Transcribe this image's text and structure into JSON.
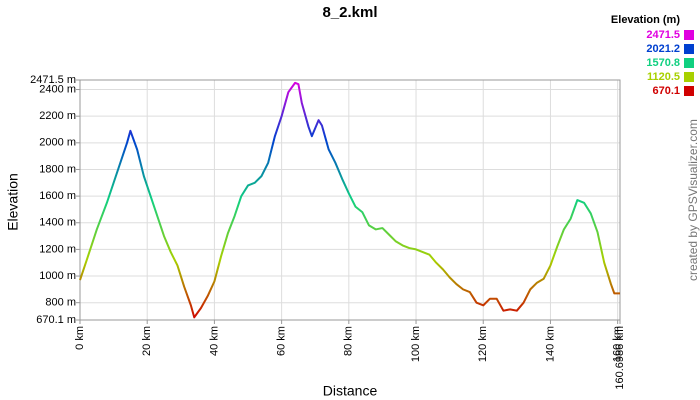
{
  "chart_data": {
    "type": "line",
    "title": "8_2.kml",
    "x_label": "Distance",
    "y_label": "Elevation",
    "credit": "created by GPSVisualizer.com",
    "x": [
      0,
      2,
      5,
      8,
      10,
      12,
      14,
      15,
      17,
      19,
      21,
      23,
      25,
      27,
      29,
      31,
      33,
      34,
      36,
      38,
      40,
      42,
      44,
      46,
      48,
      50,
      52,
      54,
      56,
      58,
      60,
      62,
      64,
      65,
      66,
      68,
      69,
      71,
      72,
      74,
      76,
      78,
      80,
      82,
      84,
      86,
      88,
      90,
      92,
      94,
      96,
      98,
      100,
      102,
      104,
      106,
      108,
      110,
      112,
      114,
      116,
      118,
      120,
      122,
      124,
      126,
      128,
      130,
      132,
      134,
      136,
      138,
      140,
      142,
      144,
      146,
      148,
      150,
      152,
      154,
      156,
      158,
      159,
      160.6986
    ],
    "series": [
      {
        "values": [
          970,
          1120,
          1350,
          1550,
          1700,
          1850,
          2000,
          2090,
          1950,
          1750,
          1600,
          1450,
          1300,
          1180,
          1080,
          920,
          780,
          690,
          760,
          850,
          960,
          1150,
          1320,
          1450,
          1600,
          1680,
          1700,
          1750,
          1850,
          2050,
          2200,
          2380,
          2450,
          2440,
          2300,
          2120,
          2050,
          2170,
          2130,
          1950,
          1850,
          1730,
          1620,
          1520,
          1480,
          1380,
          1350,
          1360,
          1310,
          1260,
          1230,
          1210,
          1200,
          1180,
          1160,
          1100,
          1050,
          990,
          940,
          900,
          880,
          800,
          780,
          830,
          830,
          740,
          750,
          740,
          800,
          900,
          950,
          980,
          1080,
          1220,
          1350,
          1430,
          1570,
          1550,
          1470,
          1330,
          1100,
          940,
          870,
          870
        ]
      }
    ],
    "xlim": [
      0,
      160.6986
    ],
    "xticks": [
      {
        "value": 0,
        "label": "0 km"
      },
      {
        "value": 20,
        "label": "20 km"
      },
      {
        "value": 40,
        "label": "40 km"
      },
      {
        "value": 60,
        "label": "60 km"
      },
      {
        "value": 80,
        "label": "80 km"
      },
      {
        "value": 100,
        "label": "100 km"
      },
      {
        "value": 120,
        "label": "120 km"
      },
      {
        "value": 140,
        "label": "140 km"
      },
      {
        "value": 160,
        "label": "160 km"
      },
      {
        "value": 160.6986,
        "label": "160.6986 km"
      }
    ],
    "ylim": [
      670.1,
      2471.5
    ],
    "yticks": [
      {
        "value": 670.1,
        "label": "670.1 m"
      },
      {
        "value": 800,
        "label": "800 m"
      },
      {
        "value": 1000,
        "label": "1000 m"
      },
      {
        "value": 1200,
        "label": "1200 m"
      },
      {
        "value": 1400,
        "label": "1400 m"
      },
      {
        "value": 1600,
        "label": "1600 m"
      },
      {
        "value": 1800,
        "label": "1800 m"
      },
      {
        "value": 2000,
        "label": "2000 m"
      },
      {
        "value": 2200,
        "label": "2200 m"
      },
      {
        "value": 2400,
        "label": "2400 m"
      },
      {
        "value": 2471.5,
        "label": "2471.5 m"
      }
    ],
    "grid": true,
    "legend": {
      "title": "Elevation (m)",
      "items": [
        {
          "value": 2471.5,
          "color": "#e000e0"
        },
        {
          "value": 2021.2,
          "color": "#0040d0"
        },
        {
          "value": 1570.8,
          "color": "#10d080"
        },
        {
          "value": 1120.5,
          "color": "#a8d000"
        },
        {
          "value": 670.1,
          "color": "#d00000"
        }
      ]
    }
  }
}
